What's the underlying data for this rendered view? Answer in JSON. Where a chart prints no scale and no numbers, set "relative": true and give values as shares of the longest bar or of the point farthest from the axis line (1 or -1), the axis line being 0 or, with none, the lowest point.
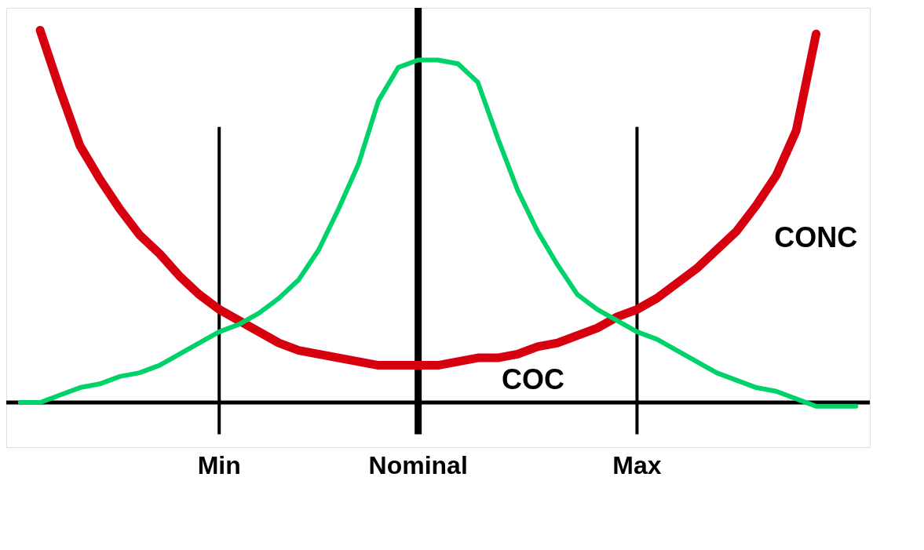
{
  "chart_data": {
    "type": "line",
    "relative": true,
    "categories": [
      null,
      null,
      null,
      null,
      null,
      null,
      null,
      null,
      null,
      null,
      "Min",
      null,
      null,
      null,
      null,
      null,
      null,
      null,
      null,
      null,
      "Nominal",
      null,
      null,
      null,
      null,
      null,
      null,
      null,
      null,
      null,
      null,
      "Max",
      null,
      null,
      null,
      null,
      null,
      null,
      null,
      null,
      null,
      null,
      null
    ],
    "series": [
      {
        "color": "#d7000f",
        "values": [
          null,
          1.0,
          0.84,
          0.69,
          0.6,
          0.52,
          0.45,
          0.4,
          0.34,
          0.29,
          0.25,
          0.22,
          0.19,
          0.16,
          0.14,
          0.13,
          0.12,
          0.11,
          0.1,
          0.1,
          0.1,
          0.1,
          0.11,
          0.12,
          0.12,
          0.13,
          0.15,
          0.16,
          0.18,
          0.2,
          0.23,
          0.25,
          0.28,
          0.32,
          0.36,
          0.41,
          0.46,
          0.53,
          0.61,
          0.73,
          0.99,
          null,
          null
        ]
      },
      {
        "color": "#00d26a",
        "values": [
          0.0,
          0.0,
          0.02,
          0.04,
          0.05,
          0.07,
          0.08,
          0.1,
          0.13,
          0.16,
          0.19,
          0.21,
          0.24,
          0.28,
          0.33,
          0.41,
          0.52,
          0.64,
          0.81,
          0.9,
          0.92,
          0.92,
          0.91,
          0.86,
          0.71,
          0.57,
          0.46,
          0.37,
          0.29,
          0.25,
          0.22,
          0.19,
          0.17,
          0.14,
          0.11,
          0.08,
          0.06,
          0.04,
          0.03,
          0.01,
          -0.01,
          -0.01,
          -0.01
        ]
      }
    ],
    "ref_lines": [
      {
        "axis": "x",
        "value": "Min",
        "color": "#000000"
      },
      {
        "axis": "x",
        "value": "Nominal",
        "color": "#000000"
      },
      {
        "axis": "x",
        "value": "Max",
        "color": "#000000"
      }
    ],
    "annotations": [
      "CONC",
      "COC"
    ],
    "grid": false,
    "line_style": "solid",
    "marker": "none"
  }
}
